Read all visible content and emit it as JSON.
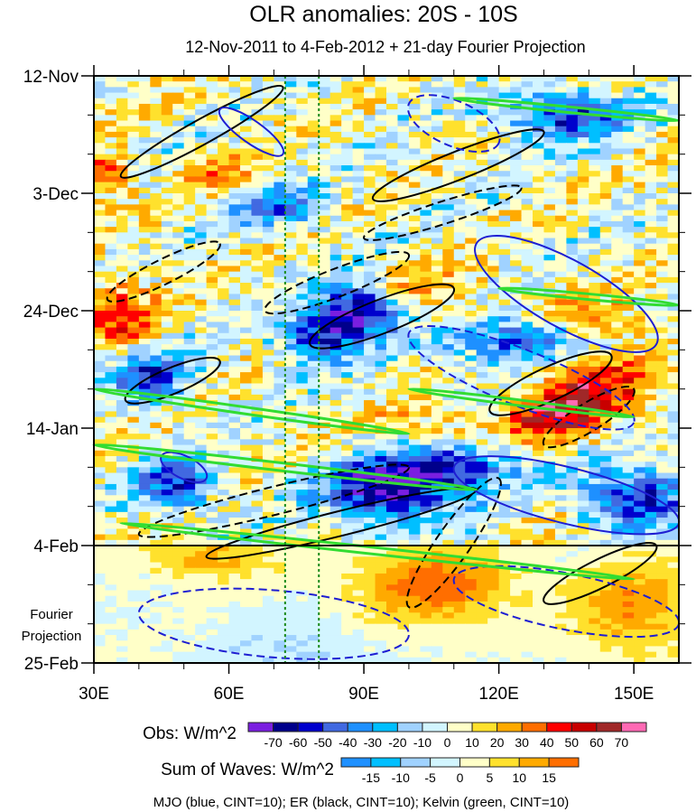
{
  "chart_data": {
    "type": "heatmap",
    "title": "OLR anomalies: 20S - 10S",
    "subtitle": "12-Nov-2011 to 4-Feb-2012 + 21-day Fourier Projection",
    "x_range": [
      30,
      160
    ],
    "x_ticks": [
      {
        "v": 30,
        "label": "30E"
      },
      {
        "v": 60,
        "label": "60E"
      },
      {
        "v": 90,
        "label": "90E"
      },
      {
        "v": 120,
        "label": "120E"
      },
      {
        "v": 150,
        "label": "150E"
      }
    ],
    "y_range_days": [
      0,
      105
    ],
    "y_ticks": [
      {
        "day": 0,
        "label": "12-Nov"
      },
      {
        "day": 21,
        "label": "3-Dec"
      },
      {
        "day": 42,
        "label": "24-Dec"
      },
      {
        "day": 63,
        "label": "14-Jan"
      },
      {
        "day": 84,
        "label": "4-Feb"
      },
      {
        "day": 105,
        "label": "25-Feb"
      }
    ],
    "projection_label": [
      "Fourier",
      "Projection"
    ],
    "projection_start_day": 84,
    "reference_lons": [
      72.5,
      80
    ],
    "obs_colorbar": {
      "label": "Obs: W/m^2",
      "levels": [
        -70,
        -60,
        -50,
        -40,
        -30,
        -20,
        -10,
        0,
        10,
        20,
        30,
        40,
        50,
        60,
        70
      ],
      "colors": [
        "#7b1fe0",
        "#00008b",
        "#0000cd",
        "#4169e1",
        "#1e90ff",
        "#00bfff",
        "#a0d2ff",
        "#d2f5ff",
        "#ffffc8",
        "#ffe12d",
        "#ffaa00",
        "#ff6e00",
        "#ff0000",
        "#c80000",
        "#a02828",
        "#ff69b4"
      ]
    },
    "waves_colorbar": {
      "label": "Sum of Waves: W/m^2",
      "levels": [
        -15,
        -10,
        -5,
        0,
        5,
        10,
        15
      ],
      "colors": [
        "#1e90ff",
        "#00bfff",
        "#a0d2ff",
        "#d2f5ff",
        "#ffffc8",
        "#ffe12d",
        "#ffaa00",
        "#ff6e00"
      ]
    },
    "obs_features": [
      {
        "lon": 90,
        "day": 42,
        "value": -75,
        "slon": 7,
        "sday": 3
      },
      {
        "lon": 80,
        "day": 47,
        "value": -60,
        "slon": 6,
        "sday": 3
      },
      {
        "lon": 95,
        "day": 74,
        "value": -75,
        "slon": 9,
        "sday": 4
      },
      {
        "lon": 110,
        "day": 70,
        "value": -60,
        "slon": 9,
        "sday": 3
      },
      {
        "lon": 135,
        "day": 7,
        "value": -55,
        "slon": 10,
        "sday": 3
      },
      {
        "lon": 125,
        "day": 47,
        "value": -55,
        "slon": 12,
        "sday": 3
      },
      {
        "lon": 150,
        "day": 75,
        "value": -55,
        "slon": 8,
        "sday": 4
      },
      {
        "lon": 43,
        "day": 54,
        "value": -55,
        "slon": 6,
        "sday": 3
      },
      {
        "lon": 48,
        "day": 73,
        "value": -55,
        "slon": 6,
        "sday": 3
      },
      {
        "lon": 70,
        "day": 23,
        "value": -40,
        "slon": 8,
        "sday": 3
      },
      {
        "lon": 36,
        "day": 42,
        "value": 40,
        "slon": 5,
        "sday": 4
      },
      {
        "lon": 140,
        "day": 56,
        "value": 50,
        "slon": 8,
        "sday": 5
      },
      {
        "lon": 130,
        "day": 61,
        "value": 40,
        "slon": 6,
        "sday": 3
      },
      {
        "lon": 32,
        "day": 18,
        "value": 40,
        "slon": 4,
        "sday": 3
      },
      {
        "lon": 60,
        "day": 18,
        "value": 25,
        "slon": 6,
        "sday": 3
      },
      {
        "lon": 105,
        "day": 40,
        "value": 25,
        "slon": 8,
        "sday": 4
      },
      {
        "lon": 140,
        "day": 44,
        "value": 30,
        "slon": 10,
        "sday": 3
      },
      {
        "lon": 105,
        "day": 63,
        "value": 20,
        "slon": 10,
        "sday": 3
      }
    ],
    "wave_features": [
      {
        "lon": 105,
        "day": 91,
        "value": 18,
        "slon": 12,
        "sday": 5
      },
      {
        "lon": 150,
        "day": 95,
        "value": 14,
        "slon": 10,
        "sday": 6
      },
      {
        "lon": 55,
        "day": 86,
        "value": 12,
        "slon": 10,
        "sday": 3
      },
      {
        "lon": 75,
        "day": 102,
        "value": -6,
        "slon": 12,
        "sday": 4
      }
    ],
    "contours": [
      {
        "wave": "ER",
        "color": "#000000",
        "sign": "positive",
        "from": [
          36,
          18
        ],
        "to": [
          72,
          2
        ],
        "width_days": 2.2
      },
      {
        "wave": "ER",
        "color": "#000000",
        "sign": "positive",
        "from": [
          92,
          22
        ],
        "to": [
          130,
          10
        ],
        "width_days": 2.5
      },
      {
        "wave": "ER",
        "color": "#000000",
        "sign": "positive",
        "from": [
          78,
          48
        ],
        "to": [
          110,
          38
        ],
        "width_days": 3
      },
      {
        "wave": "ER",
        "color": "#000000",
        "sign": "positive",
        "from": [
          37,
          58
        ],
        "to": [
          58,
          51
        ],
        "width_days": 2.3
      },
      {
        "wave": "ER",
        "color": "#000000",
        "sign": "positive",
        "from": [
          55,
          86
        ],
        "to": [
          115,
          74
        ],
        "width_days": 2.2
      },
      {
        "wave": "ER",
        "color": "#000000",
        "sign": "positive",
        "from": [
          118,
          60
        ],
        "to": [
          145,
          50
        ],
        "width_days": 3
      },
      {
        "wave": "ER",
        "color": "#000000",
        "sign": "positive",
        "from": [
          130,
          94
        ],
        "to": [
          155,
          84
        ],
        "width_days": 2.5
      },
      {
        "wave": "ER",
        "color": "#000000",
        "sign": "negative",
        "from": [
          33,
          40
        ],
        "to": [
          58,
          30
        ],
        "width_days": 2.2
      },
      {
        "wave": "ER",
        "color": "#000000",
        "sign": "negative",
        "from": [
          68,
          42
        ],
        "to": [
          100,
          32
        ],
        "width_days": 2.5
      },
      {
        "wave": "ER",
        "color": "#000000",
        "sign": "negative",
        "from": [
          90,
          29
        ],
        "to": [
          125,
          20
        ],
        "width_days": 2
      },
      {
        "wave": "ER",
        "color": "#000000",
        "sign": "negative",
        "from": [
          40,
          82
        ],
        "to": [
          100,
          70
        ],
        "width_days": 2.5
      },
      {
        "wave": "ER",
        "color": "#000000",
        "sign": "negative",
        "from": [
          100,
          95
        ],
        "to": [
          120,
          72
        ],
        "width_days": 3
      },
      {
        "wave": "ER",
        "color": "#000000",
        "sign": "negative",
        "from": [
          130,
          66
        ],
        "to": [
          150,
          56
        ],
        "width_days": 2.5
      },
      {
        "wave": "MJO",
        "color": "#1e1ed2",
        "sign": "positive",
        "from": [
          58,
          6
        ],
        "to": [
          72,
          14
        ],
        "width_days": 2
      },
      {
        "wave": "MJO",
        "color": "#1e1ed2",
        "sign": "positive",
        "from": [
          115,
          30
        ],
        "to": [
          155,
          48
        ],
        "width_days": 6
      },
      {
        "wave": "MJO",
        "color": "#1e1ed2",
        "sign": "positive",
        "from": [
          110,
          70
        ],
        "to": [
          160,
          80
        ],
        "width_days": 5
      },
      {
        "wave": "MJO",
        "color": "#1e1ed2",
        "sign": "positive",
        "from": [
          45,
          68
        ],
        "to": [
          55,
          72
        ],
        "width_days": 2
      },
      {
        "wave": "MJO",
        "color": "#1e1ed2",
        "sign": "negative",
        "from": [
          100,
          5
        ],
        "to": [
          120,
          12
        ],
        "width_days": 4
      },
      {
        "wave": "MJO",
        "color": "#1e1ed2",
        "sign": "negative",
        "from": [
          100,
          46
        ],
        "to": [
          150,
          62
        ],
        "width_days": 5
      },
      {
        "wave": "MJO",
        "color": "#1e1ed2",
        "sign": "negative",
        "from": [
          40,
          96
        ],
        "to": [
          100,
          100
        ],
        "width_days": 6
      },
      {
        "wave": "MJO",
        "color": "#1e1ed2",
        "sign": "negative",
        "from": [
          110,
          90
        ],
        "to": [
          160,
          98
        ],
        "width_days": 5
      },
      {
        "wave": "Kelvin",
        "color": "#32dc32",
        "sign": "positive",
        "from": [
          30,
          56
        ],
        "to": [
          100,
          64
        ],
        "width_days": 0.6
      },
      {
        "wave": "Kelvin",
        "color": "#32dc32",
        "sign": "positive",
        "from": [
          30,
          66
        ],
        "to": [
          115,
          74
        ],
        "width_days": 0.7
      },
      {
        "wave": "Kelvin",
        "color": "#32dc32",
        "sign": "positive",
        "from": [
          36,
          80
        ],
        "to": [
          150,
          90
        ],
        "width_days": 0.6
      },
      {
        "wave": "Kelvin",
        "color": "#32dc32",
        "sign": "positive",
        "from": [
          110,
          4
        ],
        "to": [
          160,
          8
        ],
        "width_days": 0.5
      },
      {
        "wave": "Kelvin",
        "color": "#32dc32",
        "sign": "positive",
        "from": [
          120,
          38
        ],
        "to": [
          160,
          41
        ],
        "width_days": 0.5
      },
      {
        "wave": "Kelvin",
        "color": "#32dc32",
        "sign": "positive",
        "from": [
          100,
          56
        ],
        "to": [
          150,
          61
        ],
        "width_days": 0.5
      }
    ],
    "footer": "MJO (blue, CINT=10); ER (black, CINT=10); Kelvin (green, CINT=10)"
  }
}
